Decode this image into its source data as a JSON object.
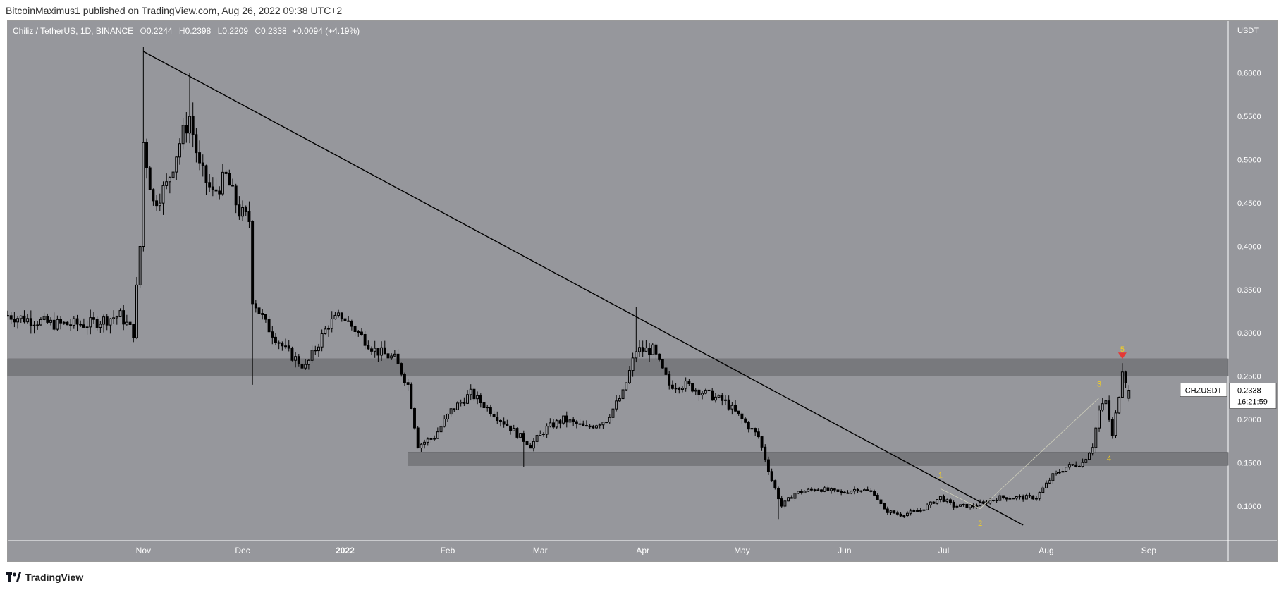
{
  "header": {
    "publisher": "BitcoinMaximus1 published on TradingView.com, Aug 26, 2022 09:38 UTC+2"
  },
  "legend": {
    "symbol": "Chiliz / TetherUS, 1D, BINANCE",
    "o_label": "O",
    "o_value": "0.2244",
    "h_label": "H",
    "h_value": "0.2398",
    "l_label": "L",
    "l_value": "0.2209",
    "c_label": "C",
    "c_value": "0.2338",
    "change": "+0.0094 (+4.19%)"
  },
  "footer": {
    "brand": "TradingView"
  },
  "price_tag": {
    "ticker": "CHZUSDT",
    "price": "0.2338",
    "countdown": "16:21:59"
  },
  "colors": {
    "plot_bg": "#96979c",
    "candle": "#000000",
    "zone": "#6e6f73",
    "wave_label": "#f5d020",
    "arrow": "#e53935",
    "axis_text": "#ffffff",
    "axis_bg": "#96979c"
  },
  "chart_data": {
    "type": "candlestick",
    "y_unit": "USDT",
    "ylim": [
      0.06,
      0.66
    ],
    "y_ticks": [
      0.1,
      0.15,
      0.2,
      0.25,
      0.3,
      0.35,
      0.4,
      0.45,
      0.5,
      0.55,
      0.6
    ],
    "y_tick_labels": [
      "0.1000",
      "0.1500",
      "0.2000",
      "0.2500",
      "0.3000",
      "0.3500",
      "0.4000",
      "0.4500",
      "0.5000",
      "0.5500",
      "0.6000"
    ],
    "x_range": [
      "2021-09-21",
      "2022-09-25"
    ],
    "x_ticks": [
      {
        "date": "2021-11-01",
        "label": "Nov"
      },
      {
        "date": "2021-12-01",
        "label": "Dec"
      },
      {
        "date": "2022-01-01",
        "label": "2022"
      },
      {
        "date": "2022-02-01",
        "label": "Feb"
      },
      {
        "date": "2022-03-01",
        "label": "Mar"
      },
      {
        "date": "2022-04-01",
        "label": "Apr"
      },
      {
        "date": "2022-05-01",
        "label": "May"
      },
      {
        "date": "2022-06-01",
        "label": "Jun"
      },
      {
        "date": "2022-07-01",
        "label": "Jul"
      },
      {
        "date": "2022-08-01",
        "label": "Aug"
      },
      {
        "date": "2022-09-01",
        "label": "Sep"
      }
    ],
    "close_path": [
      [
        "2021-09-21",
        0.32
      ],
      [
        "2021-10-05",
        0.31
      ],
      [
        "2021-10-15",
        0.31
      ],
      [
        "2021-10-25",
        0.32
      ],
      [
        "2021-10-29",
        0.3
      ],
      [
        "2021-10-31",
        0.4
      ],
      [
        "2021-11-01",
        0.52
      ],
      [
        "2021-11-04",
        0.45
      ],
      [
        "2021-11-08",
        0.47
      ],
      [
        "2021-11-12",
        0.52
      ],
      [
        "2021-11-15",
        0.55
      ],
      [
        "2021-11-18",
        0.49
      ],
      [
        "2021-11-22",
        0.46
      ],
      [
        "2021-11-26",
        0.48
      ],
      [
        "2021-11-30",
        0.44
      ],
      [
        "2021-12-03",
        0.43
      ],
      [
        "2021-12-04",
        0.34
      ],
      [
        "2021-12-08",
        0.31
      ],
      [
        "2021-12-14",
        0.28
      ],
      [
        "2021-12-20",
        0.26
      ],
      [
        "2021-12-27",
        0.31
      ],
      [
        "2021-12-31",
        0.32
      ],
      [
        "2022-01-05",
        0.3
      ],
      [
        "2022-01-10",
        0.28
      ],
      [
        "2022-01-16",
        0.27
      ],
      [
        "2022-01-20",
        0.24
      ],
      [
        "2022-01-23",
        0.17
      ],
      [
        "2022-01-28",
        0.18
      ],
      [
        "2022-02-02",
        0.21
      ],
      [
        "2022-02-08",
        0.23
      ],
      [
        "2022-02-14",
        0.21
      ],
      [
        "2022-02-20",
        0.19
      ],
      [
        "2022-02-26",
        0.17
      ],
      [
        "2022-03-03",
        0.19
      ],
      [
        "2022-03-08",
        0.2
      ],
      [
        "2022-03-15",
        0.19
      ],
      [
        "2022-03-21",
        0.2
      ],
      [
        "2022-03-26",
        0.23
      ],
      [
        "2022-03-30",
        0.28
      ],
      [
        "2022-04-04",
        0.28
      ],
      [
        "2022-04-09",
        0.24
      ],
      [
        "2022-04-14",
        0.24
      ],
      [
        "2022-04-20",
        0.23
      ],
      [
        "2022-04-26",
        0.22
      ],
      [
        "2022-05-01",
        0.2
      ],
      [
        "2022-05-06",
        0.18
      ],
      [
        "2022-05-10",
        0.13
      ],
      [
        "2022-05-13",
        0.1
      ],
      [
        "2022-05-17",
        0.115
      ],
      [
        "2022-05-24",
        0.12
      ],
      [
        "2022-05-31",
        0.115
      ],
      [
        "2022-06-05",
        0.12
      ],
      [
        "2022-06-10",
        0.115
      ],
      [
        "2022-06-13",
        0.095
      ],
      [
        "2022-06-18",
        0.09
      ],
      [
        "2022-06-24",
        0.095
      ],
      [
        "2022-06-30",
        0.11
      ],
      [
        "2022-07-04",
        0.1
      ],
      [
        "2022-07-10",
        0.1
      ],
      [
        "2022-07-14",
        0.105
      ],
      [
        "2022-07-18",
        0.11
      ],
      [
        "2022-07-24",
        0.11
      ],
      [
        "2022-07-29",
        0.11
      ],
      [
        "2022-08-03",
        0.135
      ],
      [
        "2022-08-07",
        0.145
      ],
      [
        "2022-08-12",
        0.15
      ],
      [
        "2022-08-15",
        0.17
      ],
      [
        "2022-08-17",
        0.21
      ],
      [
        "2022-08-19",
        0.22
      ],
      [
        "2022-08-21",
        0.18
      ],
      [
        "2022-08-23",
        0.23
      ],
      [
        "2022-08-24",
        0.26
      ],
      [
        "2022-08-26",
        0.2338
      ]
    ],
    "notable_highs": [
      [
        "2021-11-01",
        0.63
      ],
      [
        "2021-11-15",
        0.6
      ],
      [
        "2022-03-30",
        0.33
      ],
      [
        "2022-08-24",
        0.265
      ]
    ],
    "notable_lows": [
      [
        "2021-12-04",
        0.24
      ],
      [
        "2022-02-24",
        0.145
      ],
      [
        "2022-05-12",
        0.085
      ]
    ],
    "ohlc_last": {
      "o": 0.2244,
      "h": 0.2398,
      "l": 0.2209,
      "c": 0.2338
    },
    "resistance_zone": [
      0.25,
      0.27
    ],
    "support_zone": [
      0.147,
      0.162
    ],
    "trendline": {
      "start": [
        "2021-11-01",
        0.625
      ],
      "end": [
        "2022-07-25",
        0.078
      ]
    },
    "wave_count": [
      {
        "label": "1",
        "date": "2022-06-30",
        "price": 0.12
      },
      {
        "label": "2",
        "date": "2022-07-12",
        "price": 0.095
      },
      {
        "label": "3",
        "date": "2022-08-17",
        "price": 0.225
      },
      {
        "label": "4",
        "date": "2022-08-20",
        "price": 0.17
      },
      {
        "label": "5",
        "date": "2022-08-24",
        "price": 0.265
      }
    ],
    "wave_path": [
      [
        "2022-06-30",
        0.12
      ],
      [
        "2022-07-12",
        0.097
      ],
      [
        "2022-08-17",
        0.225
      ]
    ]
  }
}
